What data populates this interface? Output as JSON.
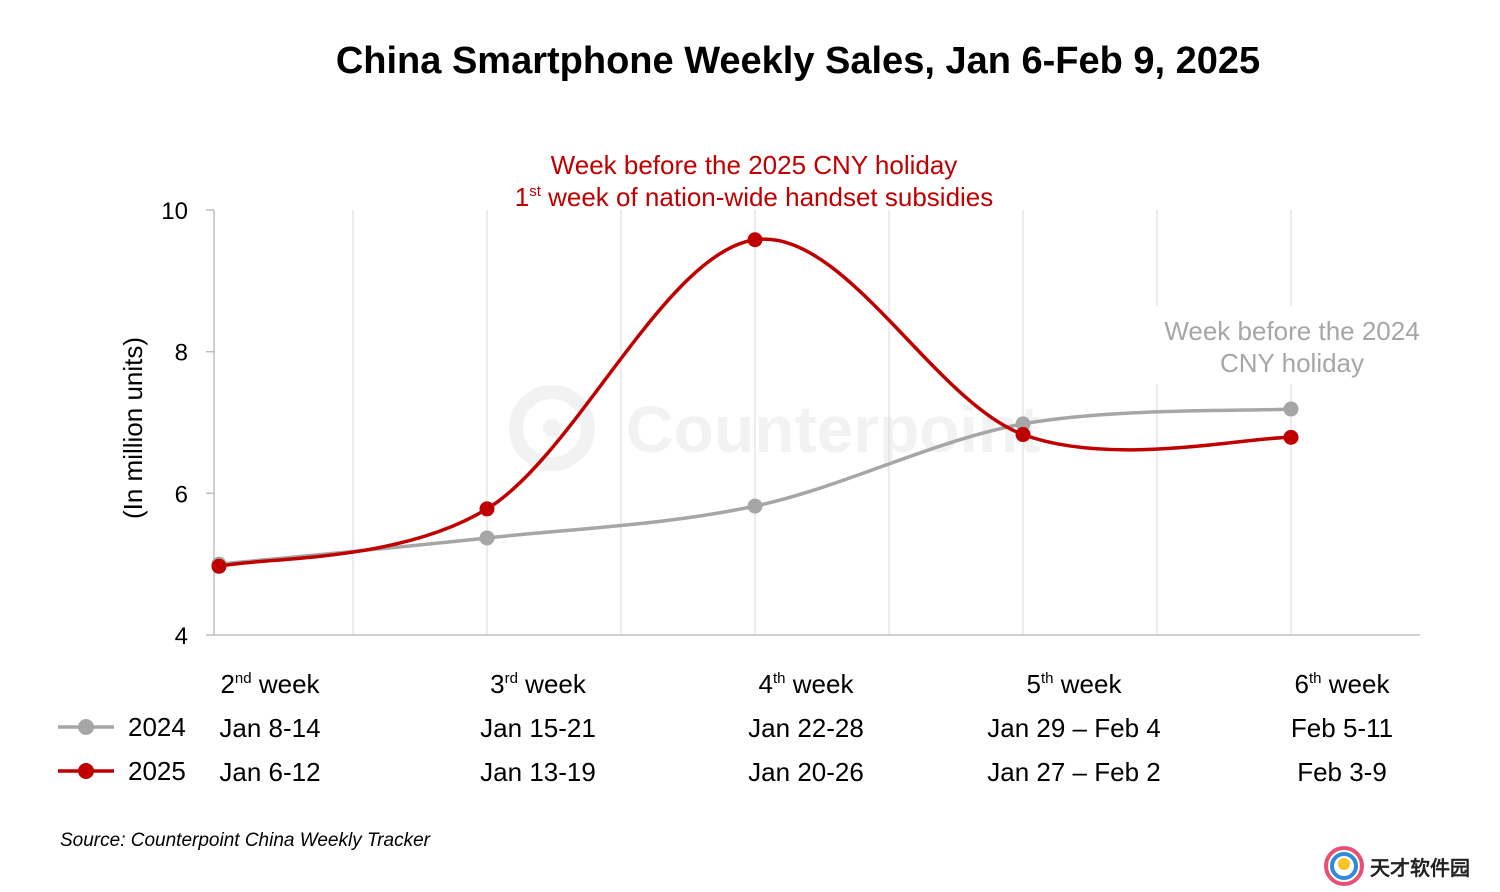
{
  "chart_data": {
    "type": "line",
    "title": "China Smartphone Weekly Sales, Jan 6-Feb 9, 2025",
    "ylabel": "(In million units)",
    "ylim": [
      4,
      10
    ],
    "yticks": [
      "4",
      "6",
      "8",
      "10"
    ],
    "grid": "vertical",
    "week_labels": [
      {
        "num": "2",
        "sup": "nd",
        "rest": " week"
      },
      {
        "num": "3",
        "sup": "rd",
        "rest": " week"
      },
      {
        "num": "4",
        "sup": "th",
        "rest": " week"
      },
      {
        "num": "5",
        "sup": "th",
        "rest": " week"
      },
      {
        "num": "6",
        "sup": "th",
        "rest": " week"
      }
    ],
    "series": [
      {
        "name": "2024",
        "color": "#a6a6a6",
        "date_labels": [
          "Jan 8-14",
          "Jan 15-21",
          "Jan 22-28",
          "Jan 29 – Feb 4",
          "Feb 5-11"
        ],
        "values": [
          5.0,
          5.37,
          5.82,
          6.98,
          7.19
        ]
      },
      {
        "name": "2025",
        "color": "#c00000",
        "date_labels": [
          "Jan 6-12",
          "Jan 13-19",
          "Jan 20-26",
          "Jan 27 – Feb 2",
          "Feb 3-9"
        ],
        "values": [
          4.97,
          5.78,
          9.58,
          6.83,
          6.79
        ]
      }
    ],
    "annotations": {
      "red_line1": "Week before the 2025 CNY holiday",
      "red_line2_num": "1",
      "red_line2_sup": "st",
      "red_line2_rest": " week of nation-wide handset subsidies",
      "gray_line1": "Week before the 2024",
      "gray_line2": "CNY holiday"
    }
  },
  "watermark": "Counterpoint",
  "source": "Source: Counterpoint China Weekly Tracker",
  "logo_text": "天才软件园"
}
